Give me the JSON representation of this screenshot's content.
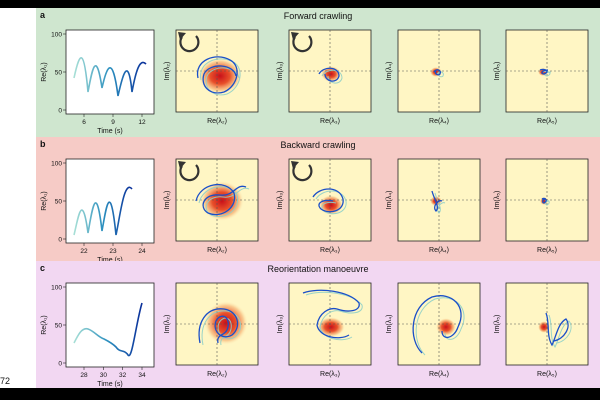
{
  "page_number": "72",
  "panels": [
    {
      "label": "a",
      "title": "Forward crawling",
      "timeseries": {
        "ylabel": "Re(λ₁)",
        "xlabel": "Time (s)",
        "y_ticks": [
          "100",
          "50",
          "0"
        ],
        "x_ticks": [
          "6",
          "9",
          "12"
        ]
      },
      "has_arrows": true,
      "phase_plots": [
        {
          "ylabel": "Im(λ₂)",
          "xlabel": "Re(λ₂)"
        },
        {
          "ylabel": "Im(λ₃)",
          "xlabel": "Re(λ₃)"
        },
        {
          "ylabel": "Im(λ₄)",
          "xlabel": "Re(λ₄)"
        },
        {
          "ylabel": "Im(λ₅)",
          "xlabel": "Re(λ₅)"
        }
      ]
    },
    {
      "label": "b",
      "title": "Backward crawling",
      "timeseries": {
        "ylabel": "Re(λ₁)",
        "xlabel": "Time (s)",
        "y_ticks": [
          "100",
          "50",
          "0"
        ],
        "x_ticks": [
          "22",
          "23",
          "24"
        ]
      },
      "has_arrows": true,
      "phase_plots": [
        {
          "ylabel": "Im(λ₂)",
          "xlabel": "Re(λ₂)"
        },
        {
          "ylabel": "Im(λ₃)",
          "xlabel": "Re(λ₃)"
        },
        {
          "ylabel": "Im(λ₄)",
          "xlabel": "Re(λ₄)"
        },
        {
          "ylabel": "Im(λ₅)",
          "xlabel": "Re(λ₅)"
        }
      ]
    },
    {
      "label": "c",
      "title": "Reorientation manoeuvre",
      "timeseries": {
        "ylabel": "Re(λ₁)",
        "xlabel": "Time (s)",
        "y_ticks": [
          "100",
          "50",
          "0"
        ],
        "x_ticks": [
          "28",
          "30",
          "32",
          "34"
        ]
      },
      "has_arrows": false,
      "phase_plots": [
        {
          "ylabel": "Im(λ₂)",
          "xlabel": "Re(λ₂)"
        },
        {
          "ylabel": "Im(λ₃)",
          "xlabel": "Re(λ₃)"
        },
        {
          "ylabel": "Im(λ₄)",
          "xlabel": "Re(λ₄)"
        },
        {
          "ylabel": "Im(λ₅)",
          "xlabel": "Re(λ₅)"
        }
      ]
    }
  ]
}
